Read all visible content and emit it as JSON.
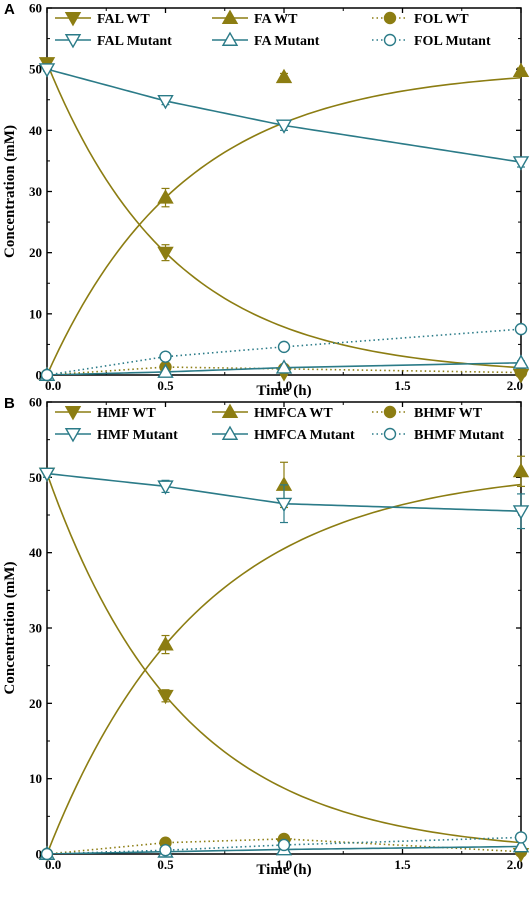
{
  "colors": {
    "wt": "#8c7d12",
    "mutant": "#2b7b88"
  },
  "chart_data": [
    {
      "panel_label": "A",
      "type": "line",
      "xlabel": "Time (h)",
      "ylabel": "Concentration (mM)",
      "xlim": [
        0,
        2.0
      ],
      "ylim": [
        0,
        60
      ],
      "xticks": [
        "0.0",
        "0.5",
        "1.0",
        "1.5",
        "2.0"
      ],
      "yticks": [
        "0",
        "10",
        "20",
        "30",
        "40",
        "50",
        "60"
      ],
      "legend_position": "top",
      "series": [
        {
          "name": "FAL WT",
          "group": "wt",
          "marker": "tri-down",
          "filled": true,
          "line": "solid",
          "x": [
            0,
            0.5,
            1.0,
            2.0
          ],
          "y": [
            51,
            20,
            0.3,
            0
          ],
          "err": [
            0.5,
            1.3,
            0.3,
            0.2
          ]
        },
        {
          "name": "FA WT",
          "group": "wt",
          "marker": "tri-up",
          "filled": true,
          "line": "solid",
          "x": [
            0,
            0.5,
            1.0,
            2.0
          ],
          "y": [
            0,
            29,
            48.7,
            49.7
          ],
          "err": [
            0,
            1.5,
            0.6,
            0.5
          ]
        },
        {
          "name": "FOL WT",
          "group": "wt",
          "marker": "circle",
          "filled": true,
          "line": "dotted",
          "x": [
            0,
            0.5,
            1.0,
            2.0
          ],
          "y": [
            0,
            1.3,
            1.0,
            0.4
          ],
          "err": [
            0,
            0.3,
            0.3,
            0.2
          ]
        },
        {
          "name": "FAL Mutant",
          "group": "mutant",
          "marker": "tri-down",
          "filled": false,
          "line": "solid",
          "x": [
            0,
            0.5,
            1.0,
            2.0
          ],
          "y": [
            50,
            44.8,
            40.8,
            34.8
          ],
          "err": [
            0.3,
            0.6,
            0.8,
            0.8
          ]
        },
        {
          "name": "FA Mutant",
          "group": "mutant",
          "marker": "tri-up",
          "filled": false,
          "line": "solid",
          "x": [
            0,
            0.5,
            1.0,
            2.0
          ],
          "y": [
            0,
            0.5,
            1.2,
            2.0
          ],
          "err": [
            0,
            0.2,
            0.2,
            0.3
          ]
        },
        {
          "name": "FOL Mutant",
          "group": "mutant",
          "marker": "circle",
          "filled": false,
          "line": "dotted",
          "x": [
            0,
            0.5,
            1.0,
            2.0
          ],
          "y": [
            0,
            3.0,
            4.6,
            7.5
          ],
          "err": [
            0,
            0.3,
            0.4,
            0.4
          ]
        }
      ]
    },
    {
      "panel_label": "B",
      "type": "line",
      "xlabel": "Time (h)",
      "ylabel": "Concentration (mM)",
      "xlim": [
        0,
        2.0
      ],
      "ylim": [
        0,
        60
      ],
      "xticks": [
        "0.0",
        "0.5",
        "1.0",
        "1.5",
        "2.0"
      ],
      "yticks": [
        "0",
        "10",
        "20",
        "30",
        "40",
        "50",
        "60"
      ],
      "legend_position": "top",
      "series": [
        {
          "name": "HMF WT",
          "group": "wt",
          "marker": "tri-down",
          "filled": true,
          "line": "solid",
          "x": [
            0,
            0.5,
            1.0,
            2.0
          ],
          "y": [
            50.5,
            21,
            1.3,
            0
          ],
          "err": [
            0.5,
            0.8,
            0.5,
            0.2
          ]
        },
        {
          "name": "HMFCA WT",
          "group": "wt",
          "marker": "tri-up",
          "filled": true,
          "line": "solid",
          "x": [
            0,
            0.5,
            1.0,
            2.0
          ],
          "y": [
            0,
            27.8,
            49,
            50.8
          ],
          "err": [
            0,
            1.2,
            3.0,
            2.0
          ]
        },
        {
          "name": "BHMF WT",
          "group": "wt",
          "marker": "circle",
          "filled": true,
          "line": "dotted",
          "x": [
            0,
            0.5,
            1.0,
            2.0
          ],
          "y": [
            0,
            1.5,
            2.0,
            0.3
          ],
          "err": [
            0,
            0.3,
            0.5,
            0.2
          ]
        },
        {
          "name": "HMF Mutant",
          "group": "mutant",
          "marker": "tri-down",
          "filled": false,
          "line": "solid",
          "x": [
            0,
            0.5,
            1.0,
            2.0
          ],
          "y": [
            50.5,
            48.8,
            46.5,
            45.5
          ],
          "err": [
            0.5,
            0.8,
            2.5,
            2.3
          ]
        },
        {
          "name": "HMFCA Mutant",
          "group": "mutant",
          "marker": "tri-up",
          "filled": false,
          "line": "solid",
          "x": [
            0,
            0.5,
            1.0,
            2.0
          ],
          "y": [
            0,
            0.3,
            0.6,
            1.0
          ],
          "err": [
            0,
            0.2,
            0.2,
            0.2
          ]
        },
        {
          "name": "BHMF Mutant",
          "group": "mutant",
          "marker": "circle",
          "filled": false,
          "line": "dotted",
          "x": [
            0,
            0.5,
            1.0,
            2.0
          ],
          "y": [
            0,
            0.5,
            1.2,
            2.2
          ],
          "err": [
            0,
            0.2,
            0.3,
            0.4
          ]
        }
      ]
    }
  ]
}
